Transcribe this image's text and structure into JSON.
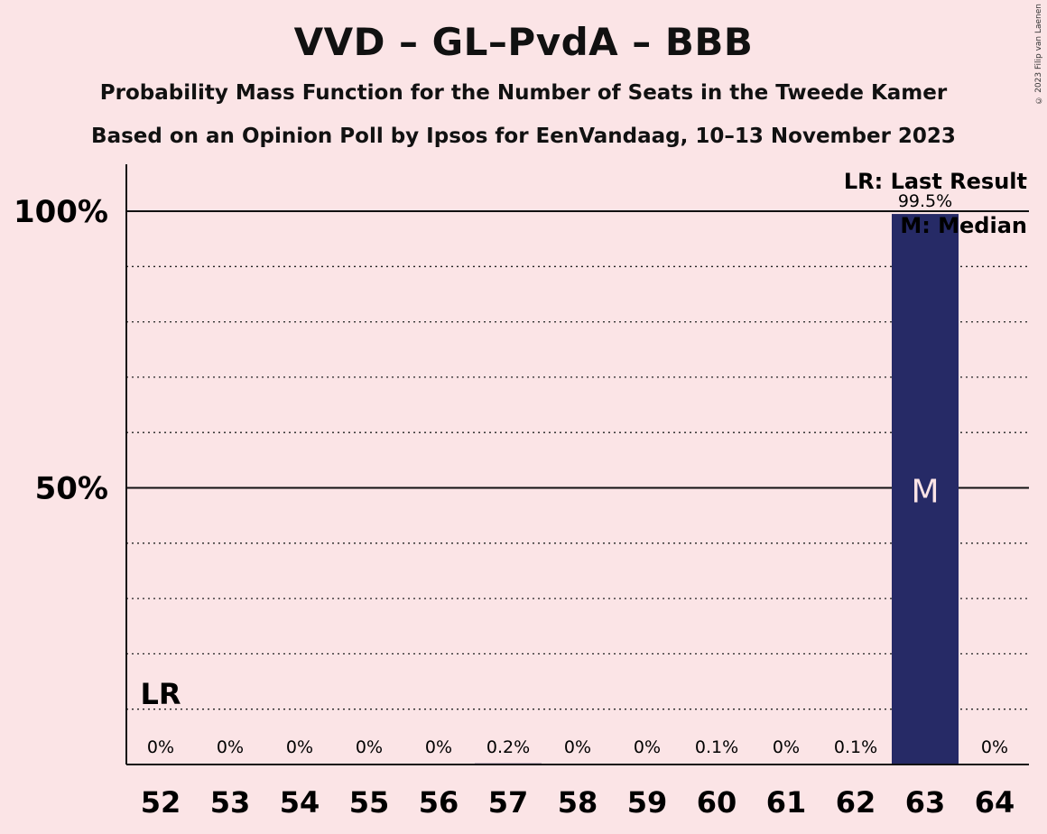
{
  "header": {
    "title": "VVD – GL–PvdA – BBB",
    "subtitle1": "Probability Mass Function for the Number of Seats in the Tweede Kamer",
    "subtitle2": "Based on an Opinion Poll by Ipsos for EenVandaag, 10–13 November 2023",
    "copyright": "© 2023 Filip van Laenen"
  },
  "legend": {
    "last_result": "LR: Last Result",
    "median": "M: Median"
  },
  "chart_data": {
    "type": "bar",
    "title": "VVD – GL–PvdA – BBB",
    "categories": [
      "52",
      "53",
      "54",
      "55",
      "56",
      "57",
      "58",
      "59",
      "60",
      "61",
      "62",
      "63",
      "64"
    ],
    "values": [
      0,
      0,
      0,
      0,
      0,
      0.2,
      0,
      0,
      0.1,
      0,
      0.1,
      99.5,
      0
    ],
    "value_labels": [
      "0%",
      "0%",
      "0%",
      "0%",
      "0%",
      "0.2%",
      "0%",
      "0%",
      "0.1%",
      "0%",
      "0.1%",
      "99.5%",
      "0%"
    ],
    "ylim": [
      0,
      100
    ],
    "yticks": [
      {
        "value": 50,
        "label": "50%"
      },
      {
        "value": 100,
        "label": "100%"
      }
    ],
    "minor_gridlines": [
      10,
      20,
      30,
      40,
      60,
      70,
      80,
      90
    ],
    "last_result_category": "52",
    "last_result_label": "LR",
    "median_category": "63",
    "median_label": "M",
    "bar_color": "#262a66",
    "median_text_color": "#fbe4e6",
    "grid": true,
    "legend_placement": "top-right"
  }
}
